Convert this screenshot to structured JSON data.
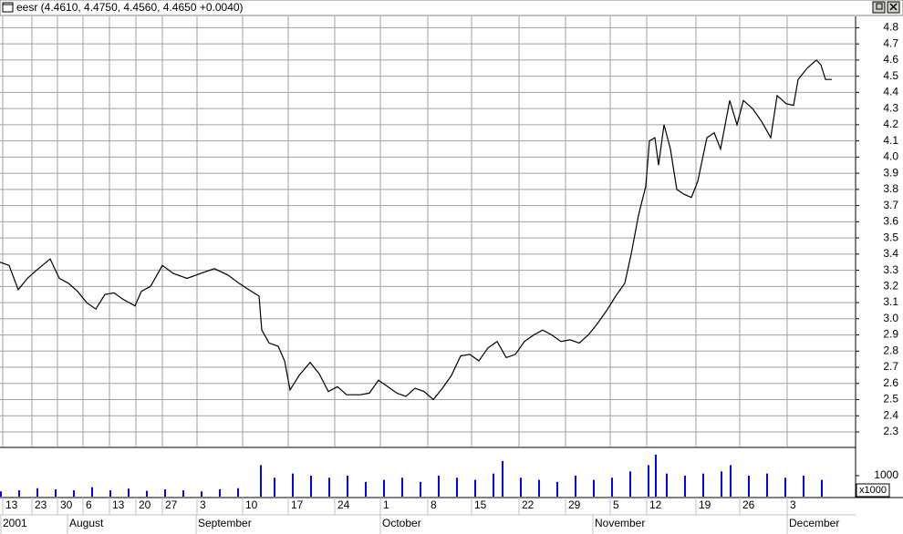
{
  "window_title": "eesr (4.4610, 4.4750, 4.4560, 4.4650 +0.0040)",
  "chart_data": {
    "type": "line",
    "ylim": [
      2.21,
      4.87
    ],
    "yticks": [
      2.3,
      2.4,
      2.5,
      2.6,
      2.7,
      2.8,
      2.9,
      {
        "value": 3,
        "label": "3.0"
      },
      3.1,
      3.2,
      3.3,
      3.4,
      3.5,
      3.6,
      3.7,
      3.8,
      3.9,
      {
        "value": 4,
        "label": "4.0"
      },
      4.1,
      4.2,
      4.3,
      4.4,
      4.5,
      4.6,
      4.7,
      4.8
    ],
    "xlim": [
      0,
      187.6
    ],
    "xticks": [
      {
        "value": 0.6,
        "label": "13"
      },
      {
        "value": 7,
        "label": "23"
      },
      {
        "value": 12.6,
        "label": "30"
      },
      {
        "value": 18.2,
        "label": "6"
      },
      {
        "value": 24,
        "label": "13"
      },
      {
        "value": 29.8,
        "label": "20"
      },
      {
        "value": 35.6,
        "label": "27"
      },
      {
        "value": 43.2,
        "label": "3"
      },
      {
        "value": 53.2,
        "label": "10"
      },
      {
        "value": 63.2,
        "label": "17"
      },
      {
        "value": 73.4,
        "label": "24"
      },
      {
        "value": 83.4,
        "label": "1"
      },
      {
        "value": 93.8,
        "label": "8"
      },
      {
        "value": 103.4,
        "label": "15"
      },
      {
        "value": 113.8,
        "label": "22"
      },
      {
        "value": 124,
        "label": "29"
      },
      {
        "value": 133.8,
        "label": "5"
      },
      {
        "value": 141.8,
        "label": "12"
      },
      {
        "value": 152.6,
        "label": "19"
      },
      {
        "value": 162.2,
        "label": "26"
      },
      {
        "value": 172.6,
        "label": "3"
      }
    ],
    "month_ticks": [
      {
        "value": 0.2,
        "label": "2001"
      },
      {
        "value": 14.8,
        "label": "August"
      },
      {
        "value": 43,
        "label": "September"
      },
      {
        "value": 83.4,
        "label": "October"
      },
      {
        "value": 130,
        "label": "November"
      },
      {
        "value": 172.6,
        "label": "December"
      }
    ],
    "grid": true,
    "series": [
      {
        "name": "eesr",
        "color": "#000000",
        "x": [
          0,
          2,
          4,
          6,
          8,
          11,
          13,
          15,
          17,
          19,
          21,
          23,
          25,
          27,
          29.6,
          31,
          33,
          35.6,
          38,
          41,
          44,
          47,
          50,
          52.4,
          54,
          56.8,
          57.4,
          59,
          61,
          62.4,
          63.6,
          65.6,
          68,
          70,
          72,
          74,
          76,
          79,
          81,
          83,
          85,
          87,
          89,
          91,
          93,
          95,
          97,
          99,
          101,
          103,
          105,
          107,
          109,
          111,
          113,
          115,
          117,
          119,
          121,
          123,
          125,
          127,
          129,
          131,
          133,
          135,
          137,
          138.4,
          140,
          141.6,
          142.4,
          143.6,
          144.4,
          145.6,
          147,
          148.4,
          150,
          151.6,
          153,
          155,
          156.6,
          158,
          160,
          161.6,
          163,
          165,
          167,
          169,
          170.4,
          172.4,
          174,
          175,
          177,
          179,
          180,
          181,
          182.4
        ],
        "values": [
          3.35,
          3.33,
          3.18,
          3.25,
          3.3,
          3.37,
          3.25,
          3.22,
          3.17,
          3.1,
          3.06,
          3.15,
          3.16,
          3.12,
          3.08,
          3.17,
          3.2,
          3.33,
          3.28,
          3.25,
          3.28,
          3.31,
          3.27,
          3.22,
          3.19,
          3.14,
          2.93,
          2.85,
          2.83,
          2.74,
          2.56,
          2.65,
          2.73,
          2.66,
          2.55,
          2.58,
          2.53,
          2.53,
          2.54,
          2.62,
          2.58,
          2.54,
          2.52,
          2.57,
          2.55,
          2.5,
          2.57,
          2.65,
          2.77,
          2.78,
          2.74,
          2.82,
          2.86,
          2.76,
          2.78,
          2.86,
          2.9,
          2.93,
          2.9,
          2.86,
          2.87,
          2.85,
          2.9,
          2.97,
          3.05,
          3.14,
          3.22,
          3.4,
          3.64,
          3.82,
          4.1,
          4.12,
          3.95,
          4.2,
          4.05,
          3.8,
          3.77,
          3.75,
          3.85,
          4.12,
          4.15,
          4.05,
          4.35,
          4.2,
          4.35,
          4.3,
          4.22,
          4.12,
          4.38,
          4.33,
          4.32,
          4.48,
          4.55,
          4.6,
          4.57,
          4.48,
          4.48
        ]
      }
    ],
    "volume": {
      "color": "#0000ff",
      "ylim": [
        0,
        2300
      ],
      "yticks": [
        1000
      ],
      "unit_label": "x1000",
      "x": [
        0,
        4,
        8,
        12,
        16,
        20,
        24,
        28,
        32,
        36,
        40,
        44,
        48,
        52,
        57,
        60,
        64,
        68,
        72,
        76,
        80,
        84,
        88,
        92,
        96,
        100,
        104,
        108,
        110,
        114,
        118,
        122,
        126,
        130,
        134,
        138,
        142,
        143.6,
        146,
        150,
        154,
        158,
        160,
        164,
        168,
        172,
        176,
        180
      ],
      "values": [
        250,
        300,
        400,
        350,
        300,
        450,
        300,
        380,
        280,
        350,
        300,
        250,
        350,
        400,
        1500,
        900,
        1100,
        1000,
        900,
        1000,
        700,
        800,
        900,
        700,
        1000,
        900,
        800,
        1100,
        1700,
        900,
        800,
        700,
        1000,
        800,
        900,
        1200,
        1500,
        2000,
        1100,
        1000,
        1100,
        1200,
        1500,
        1000,
        1100,
        900,
        1000,
        800
      ]
    }
  }
}
